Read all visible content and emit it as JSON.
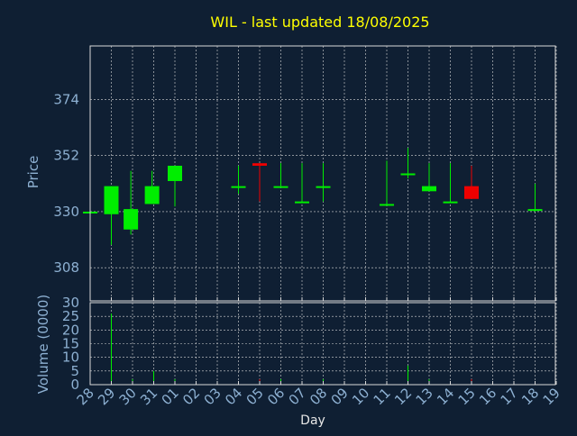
{
  "colors": {
    "background": "#0f1f33",
    "frame": "#d8d8d8",
    "grid": "#d8d8d8",
    "title": "#ffff00",
    "axis_text": "#8db0d2",
    "xlabel": "#e6e6e6",
    "up": "#00ee00",
    "down": "#ee0000"
  },
  "chart_data": {
    "type": "candlestick",
    "title": "WIL - last updated 18/08/2025",
    "xlabel": "Day",
    "x": [
      "28",
      "29",
      "30",
      "31",
      "01",
      "02",
      "03",
      "04",
      "05",
      "06",
      "07",
      "08",
      "09",
      "10",
      "11",
      "12",
      "13",
      "14",
      "15",
      "16",
      "17",
      "18",
      "19"
    ],
    "price_panel": {
      "ylabel": "Price",
      "yticks": [
        308,
        330,
        352,
        374
      ],
      "ylim": [
        295,
        395
      ],
      "grid": true,
      "candles": [
        {
          "x": "28",
          "open": 330,
          "close": 330,
          "high": 330,
          "low": 330,
          "dir": "up"
        },
        {
          "x": "29",
          "open": 329,
          "close": 340,
          "high": 340,
          "low": 317,
          "dir": "up"
        },
        {
          "x": "29.92",
          "open": 323,
          "close": 331,
          "high": 346,
          "low": 321,
          "dir": "up"
        },
        {
          "x": "30.92",
          "open": 333,
          "close": 340,
          "high": 346,
          "low": 333,
          "dir": "up"
        },
        {
          "x": "01",
          "open": 342,
          "close": 348,
          "high": 348,
          "low": 332,
          "dir": "up"
        },
        {
          "x": "04",
          "open": 340,
          "close": 340,
          "high": 348,
          "low": 337,
          "dir": "up"
        },
        {
          "x": "05",
          "open": 349,
          "close": 348,
          "high": 349,
          "low": 334,
          "dir": "down"
        },
        {
          "x": "06",
          "open": 340,
          "close": 340,
          "high": 349,
          "low": 340,
          "dir": "up"
        },
        {
          "x": "07",
          "open": 334,
          "close": 334,
          "high": 349,
          "low": 334,
          "dir": "up"
        },
        {
          "x": "08",
          "open": 340,
          "close": 340,
          "high": 349,
          "low": 334,
          "dir": "up"
        },
        {
          "x": "11",
          "open": 333,
          "close": 333,
          "high": 350,
          "low": 333,
          "dir": "up"
        },
        {
          "x": "12",
          "open": 345,
          "close": 345,
          "high": 355,
          "low": 343,
          "dir": "up"
        },
        {
          "x": "13",
          "open": 338,
          "close": 340,
          "high": 349,
          "low": 338,
          "dir": "up"
        },
        {
          "x": "14",
          "open": 334,
          "close": 334,
          "high": 349,
          "low": 334,
          "dir": "up"
        },
        {
          "x": "15",
          "open": 340,
          "close": 335,
          "high": 348,
          "low": 335,
          "dir": "down"
        },
        {
          "x": "18",
          "open": 331,
          "close": 331,
          "high": 341,
          "low": 330,
          "dir": "up"
        }
      ]
    },
    "volume_panel": {
      "ylabel": "Volume (0000)",
      "yticks": [
        0,
        5,
        10,
        15,
        20,
        25,
        30
      ],
      "ylim": [
        0,
        30
      ],
      "bars": [
        {
          "x": "29",
          "value": 26,
          "dir": "up"
        },
        {
          "x": "30",
          "value": 2,
          "dir": "up"
        },
        {
          "x": "31",
          "value": 5,
          "dir": "up"
        },
        {
          "x": "01",
          "value": 2,
          "dir": "up"
        },
        {
          "x": "05",
          "value": 2,
          "dir": "down"
        },
        {
          "x": "06",
          "value": 2,
          "dir": "up"
        },
        {
          "x": "08",
          "value": 2,
          "dir": "up"
        },
        {
          "x": "12",
          "value": 7,
          "dir": "up"
        },
        {
          "x": "13",
          "value": 2,
          "dir": "up"
        },
        {
          "x": "14",
          "value": 1,
          "dir": "up"
        },
        {
          "x": "15",
          "value": 2,
          "dir": "down"
        },
        {
          "x": "18",
          "value": 1,
          "dir": "up"
        }
      ]
    }
  }
}
